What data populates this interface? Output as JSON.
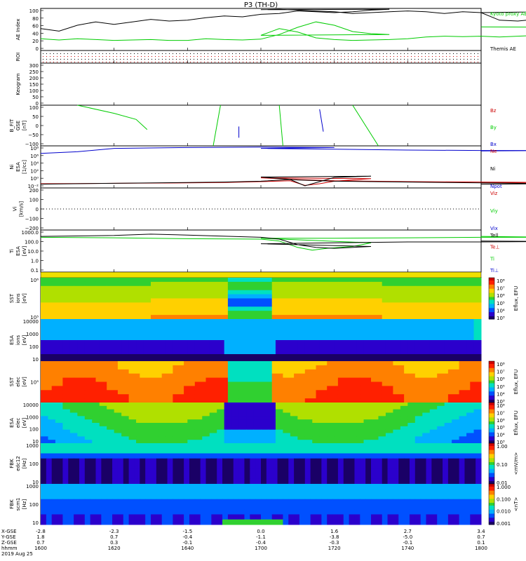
{
  "title": "P3 (TH-D)",
  "colors": {
    "kyoto_ae": "#00cc00",
    "themis_ae": "#000000",
    "bz": "#cc0000",
    "by": "#00cc00",
    "bx": "#0000cc",
    "ne": "#cc0000",
    "ni": "#000000",
    "npot": "#0000cc",
    "tell": "#000000",
    "tperp_e": "#cc0000",
    "ti": "#00cc00",
    "tperp_i": "#0000cc"
  },
  "chart_data": [
    {
      "type": "line",
      "panel": "ae",
      "ylabel": "AE Index",
      "ylim": [
        0,
        100
      ],
      "yticks": [
        "100",
        "80",
        "60",
        "40",
        "20",
        "0"
      ],
      "series": [
        {
          "name": "Kyoto proxy AE",
          "x": [
            1600,
            1605,
            1610,
            1615,
            1620,
            1625,
            1630,
            1635,
            1640,
            1645,
            1650,
            1655,
            1660,
            1665,
            1670,
            1675,
            1680,
            1685,
            1690,
            1695,
            1700,
            1705,
            1710,
            1715,
            1720,
            1725,
            1730,
            1735,
            1740,
            1745,
            1750,
            1755,
            1760,
            1765,
            1770,
            1775,
            1780,
            1785,
            1790,
            1795,
            1800
          ],
          "values": [
            28,
            25,
            28,
            26,
            24,
            25,
            26,
            24,
            24,
            28,
            26,
            25,
            27,
            38,
            55,
            68,
            60,
            45,
            40,
            38,
            36,
            52,
            44,
            30,
            26,
            24,
            25,
            26,
            28,
            32,
            34,
            33,
            34,
            32,
            34,
            36,
            38,
            44,
            52,
            55,
            56
          ]
        },
        {
          "name": "Themis AE",
          "x": [
            1600,
            1605,
            1610,
            1615,
            1620,
            1625,
            1630,
            1635,
            1640,
            1645,
            1650,
            1655,
            1660,
            1665,
            1670,
            1675,
            1680,
            1685,
            1690,
            1695,
            1700,
            1705,
            1710,
            1715,
            1720,
            1725,
            1730,
            1735,
            1740,
            1745,
            1750,
            1755,
            1760,
            1765,
            1770,
            1775,
            1780,
            1785,
            1790,
            1795,
            1800
          ],
          "values": [
            52,
            46,
            60,
            68,
            62,
            68,
            74,
            70,
            72,
            78,
            82,
            80,
            86,
            88,
            94,
            92,
            90,
            92,
            96,
            98,
            97,
            98,
            96,
            94,
            92,
            88,
            90,
            92,
            94,
            92,
            88,
            92,
            90,
            72,
            70,
            74,
            80,
            88,
            96,
            94,
            90
          ]
        }
      ],
      "legend": [
        "Kyoto proxy AE",
        "Themis AE"
      ]
    },
    {
      "type": "line",
      "panel": "roi",
      "ylabel": "ROI"
    },
    {
      "type": "line",
      "panel": "keogram",
      "ylabel": "Keogram",
      "ylim": [
        0,
        300
      ],
      "yticks": [
        "300",
        "250",
        "200",
        "150",
        "100",
        "50",
        "0"
      ]
    },
    {
      "type": "line",
      "panel": "bfit",
      "ylabel": "B_FIT GSE [nT]",
      "ylim": [
        -100,
        100
      ],
      "yticks": [
        "100",
        "50",
        "0",
        "−50",
        "−100"
      ],
      "legend": [
        "Bz",
        "By",
        "Bx"
      ],
      "series": [
        {
          "name": "By",
          "segments": [
            [
              [
                1610,
                100
              ],
              [
                1620,
                60
              ],
              [
                1626,
                30
              ],
              [
                1629,
                -20
              ]
            ],
            [
              [
                1647,
                -100
              ],
              [
                1649,
                100
              ]
            ],
            [
              [
                1705,
                100
              ],
              [
                1706,
                -100
              ]
            ],
            [
              [
                1725,
                100
              ],
              [
                1732,
                -100
              ]
            ]
          ]
        },
        {
          "name": "Bx",
          "segments": [
            [
              [
                1654,
                -5
              ],
              [
                1654,
                -60
              ]
            ],
            [
              [
                1716,
                80
              ],
              [
                1717,
                -30
              ]
            ]
          ]
        }
      ]
    },
    {
      "type": "line",
      "panel": "density",
      "ylabel": "Ni ESA [1/cc]",
      "ylim_log10": [
        -2,
        8
      ],
      "yticks": [
        "10⁸",
        "10⁶",
        "10⁴",
        "10²",
        "10⁰",
        "10⁻²"
      ],
      "legend": [
        "Ne",
        "Ni",
        "Npot"
      ],
      "series": [
        {
          "name": "Ne",
          "x": [
            1600,
            1620,
            1640,
            1650,
            1660,
            1668,
            1672,
            1676,
            1680,
            1690,
            1700,
            1710,
            1720,
            1740,
            1760,
            1780,
            1800
          ],
          "values_log10": [
            -1.0,
            -0.9,
            -0.8,
            -0.7,
            -0.5,
            -0.3,
            -1.4,
            -1.0,
            -0.4,
            0.2,
            0.4,
            0.0,
            -0.3,
            -0.5,
            -0.6,
            -0.7,
            -0.8
          ]
        },
        {
          "name": "Ni",
          "x": [
            1600,
            1620,
            1640,
            1650,
            1660,
            1668,
            1672,
            1676,
            1680,
            1690,
            1700,
            1710,
            1720,
            1740,
            1760,
            1780,
            1800
          ],
          "values_log10": [
            -1.1,
            -0.9,
            -0.7,
            -0.6,
            -0.4,
            0.0,
            -1.5,
            -0.5,
            0.5,
            0.8,
            0.6,
            -0.1,
            -0.4,
            -0.6,
            -0.8,
            -1.0,
            -1.1
          ]
        },
        {
          "name": "Npot",
          "x": [
            1600,
            1610,
            1620,
            1640,
            1660,
            1680,
            1700,
            1720,
            1740,
            1760,
            1780,
            1800
          ],
          "values_log10": [
            6.2,
            6.6,
            7.4,
            7.6,
            7.7,
            7.6,
            7.4,
            7.2,
            7.0,
            6.9,
            6.9,
            6.8
          ]
        }
      ]
    },
    {
      "type": "line",
      "panel": "velocity",
      "ylabel": "Vi [km/s]",
      "ylim": [
        -250,
        250
      ],
      "yticks": [
        "200",
        "100",
        "0",
        "−100",
        "−200"
      ],
      "legend": [
        "Viz",
        "Viy",
        "Vix"
      ]
    },
    {
      "type": "line",
      "panel": "temperature",
      "ylabel": "Ti ESA [eV]",
      "ylim_log10": [
        -1.2,
        3.4
      ],
      "yticks": [
        "1000.0",
        "100.0",
        "10.0",
        "1.0",
        "0.1"
      ],
      "legend": [
        "Tell",
        "Te⊥",
        "Ti",
        "Ti⊥"
      ],
      "series": [
        {
          "name": "Ti",
          "x": [
            1600,
            1620,
            1640,
            1660,
            1665,
            1670,
            1674,
            1678,
            1685,
            1690,
            1700,
            1720,
            1740,
            1760,
            1780,
            1800
          ],
          "values_log10": [
            2.6,
            2.55,
            2.45,
            2.4,
            2.2,
            1.5,
            1.2,
            1.4,
            1.6,
            2.0,
            2.5,
            2.5,
            2.55,
            2.6,
            2.6,
            2.7
          ]
        },
        {
          "name": "Tell",
          "x": [
            1600,
            1620,
            1630,
            1640,
            1660,
            1665,
            1670,
            1675,
            1680,
            1690,
            1700,
            1720,
            1740,
            1760,
            1780,
            1800
          ],
          "values_log10": [
            2.7,
            2.8,
            2.95,
            2.85,
            2.6,
            2.4,
            1.8,
            1.5,
            1.4,
            1.6,
            1.9,
            2.0,
            2.1,
            2.1,
            2.15,
            2.2
          ]
        }
      ]
    },
    {
      "type": "heatmap",
      "panel": "sst_ion",
      "ylabel": "SST ions [eV]",
      "yticks": [
        "10⁶",
        "10⁵"
      ],
      "colorbar": {
        "label": "Eflux, EFU",
        "ticks": [
          "10⁸",
          "10⁷",
          "10⁶",
          "10⁵",
          "10⁴",
          "10³"
        ]
      }
    },
    {
      "type": "heatmap",
      "panel": "esa_ion",
      "ylabel": "ESA ions [eV]",
      "yticks": [
        "10000",
        "1000",
        "100",
        "10"
      ]
    },
    {
      "type": "heatmap",
      "panel": "sst_elec",
      "ylabel": "SST elec [eV]",
      "yticks": [
        "10⁵"
      ],
      "colorbar": {
        "label": "Eflux, EFU",
        "ticks": [
          "10⁸",
          "10⁷",
          "10⁶",
          "10⁵",
          "10⁴",
          "10³"
        ]
      }
    },
    {
      "type": "heatmap",
      "panel": "esa_elec",
      "ylabel": "ESA elec [eV]",
      "yticks": [
        "10000",
        "1000",
        "100",
        "10"
      ],
      "colorbar": {
        "label": "Eflux, EFU",
        "ticks": [
          "10⁸",
          "10⁷",
          "10⁶",
          "10⁵",
          "10⁴",
          "10³"
        ]
      }
    },
    {
      "type": "heatmap",
      "panel": "fbk_e",
      "ylabel": "FBK edc12 [Hz]",
      "yticks": [
        "1000",
        "100",
        "10"
      ],
      "colorbar": {
        "label": "<mV/m>",
        "ticks": [
          "1.00",
          "0.10",
          "0.01"
        ]
      }
    },
    {
      "type": "heatmap",
      "panel": "fbk_b",
      "ylabel": "FBK scm1 [Hz]",
      "yticks": [
        "1000",
        "100",
        "10"
      ],
      "colorbar": {
        "label": "<nT>",
        "ticks": [
          "1.000",
          "0.100",
          "0.010",
          "0.001"
        ]
      }
    }
  ],
  "x_axis": {
    "row_labels": [
      "X-GSE",
      "Y-GSE",
      "Z-GSE",
      "hhmm",
      "2019 Aug 25"
    ],
    "ticks": [
      {
        "hhmm": "1600",
        "x": "-2.8",
        "y": "1.8",
        "z": "0.7"
      },
      {
        "hhmm": "1620",
        "x": "-2.3",
        "y": "0.7",
        "z": "0.3"
      },
      {
        "hhmm": "1640",
        "x": "-1.5",
        "y": "-0.4",
        "z": "-0.1"
      },
      {
        "hhmm": "1700",
        "x": "0.0",
        "y": "-1.1",
        "z": "-0.4"
      },
      {
        "hhmm": "1720",
        "x": "1.6",
        "y": "-3.8",
        "z": "-0.3"
      },
      {
        "hhmm": "1740",
        "x": "2.7",
        "y": "-5.0",
        "z": "-0.1"
      },
      {
        "hhmm": "1800",
        "x": "3.4",
        "y": "0.7",
        "z": "0.1"
      }
    ]
  }
}
